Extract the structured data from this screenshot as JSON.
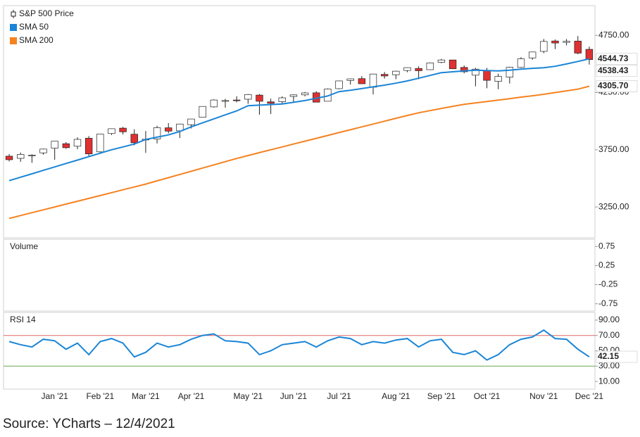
{
  "chart_data": [
    {
      "type": "candlestick",
      "up_color": "#ffffff",
      "down_color": "#e03131",
      "outline_color": "#222222",
      "ylim": [
        2980,
        5010
      ],
      "yticks": [
        {
          "value": 3250,
          "label": "3250.00"
        },
        {
          "value": 3750,
          "label": "3750.00"
        },
        {
          "value": 4250,
          "label": "4250.00"
        },
        {
          "value": 4750,
          "label": "4750.00"
        }
      ],
      "series": [
        {
          "name": "S&P 500 Price",
          "open": [
            3694,
            3675,
            3698,
            3723,
            3764,
            3803,
            3781,
            3851,
            3732,
            3892,
            3939,
            3886,
            3842,
            3844,
            3942,
            3916,
            3969,
            4034,
            4125,
            4180,
            4185,
            4192,
            4228,
            4169,
            4170,
            4216,
            4230,
            4248,
            4174,
            4284,
            4356,
            4372,
            4297,
            4409,
            4406,
            4443,
            4461,
            4450,
            4514,
            4535,
            4470,
            4402,
            4442,
            4348,
            4385,
            4470,
            4553,
            4610,
            4701,
            4689,
            4700,
            4628
          ],
          "high": [
            3712,
            3726,
            3711,
            3760,
            3826,
            3817,
            3859,
            3870,
            3887,
            3935,
            3950,
            3929,
            3914,
            3960,
            3983,
            3978,
            4020,
            4130,
            4191,
            4195,
            4218,
            4238,
            4237,
            4197,
            4217,
            4234,
            4255,
            4262,
            4286,
            4355,
            4372,
            4394,
            4415,
            4430,
            4441,
            4470,
            4479,
            4513,
            4545,
            4536,
            4487,
            4466,
            4466,
            4415,
            4475,
            4559,
            4608,
            4718,
            4714,
            4718,
            4744,
            4652
          ],
          "low": [
            3648,
            3645,
            3636,
            3707,
            3663,
            3759,
            3755,
            3694,
            3725,
            3879,
            3884,
            3789,
            3723,
            3805,
            3894,
            3853,
            3936,
            4032,
            4118,
            4118,
            4164,
            4152,
            4057,
            4062,
            4155,
            4168,
            4217,
            4165,
            4173,
            4279,
            4320,
            4325,
            4233,
            4372,
            4367,
            4428,
            4367,
            4448,
            4506,
            4457,
            4418,
            4305,
            4288,
            4279,
            4329,
            4465,
            4537,
            4595,
            4630,
            4662,
            4585,
            4495
          ],
          "close": [
            3663,
            3709,
            3703,
            3756,
            3825,
            3768,
            3841,
            3714,
            3887,
            3934,
            3907,
            3811,
            3842,
            3943,
            3913,
            3975,
            4019,
            4129,
            4185,
            4180,
            4181,
            4233,
            4174,
            4156,
            4204,
            4230,
            4247,
            4166,
            4281,
            4352,
            4370,
            4327,
            4412,
            4395,
            4437,
            4468,
            4441,
            4509,
            4535,
            4458,
            4432,
            4455,
            4357,
            4391,
            4471,
            4545,
            4605,
            4697,
            4683,
            4698,
            4595,
            4538.43
          ]
        },
        {
          "name": "SMA 50",
          "color": "#1a85d6",
          "values": [
            3480,
            3510,
            3540,
            3570,
            3600,
            3630,
            3660,
            3690,
            3720,
            3750,
            3775,
            3800,
            3840,
            3860,
            3880,
            3910,
            3950,
            3985,
            4020,
            4055,
            4090,
            4135,
            4140,
            4145,
            4150,
            4165,
            4180,
            4200,
            4220,
            4258,
            4270,
            4285,
            4300,
            4315,
            4332,
            4352,
            4375,
            4400,
            4424,
            4432,
            4440,
            4445,
            4442,
            4440,
            4445,
            4455,
            4462,
            4467,
            4480,
            4500,
            4522,
            4544.73
          ]
        },
        {
          "name": "SMA 200",
          "color": "#f5821f",
          "values": [
            3150,
            3175,
            3200,
            3225,
            3250,
            3275,
            3300,
            3325,
            3350,
            3375,
            3400,
            3425,
            3450,
            3478,
            3506,
            3534,
            3562,
            3590,
            3618,
            3646,
            3674,
            3700,
            3725,
            3750,
            3775,
            3800,
            3825,
            3850,
            3875,
            3900,
            3925,
            3950,
            3975,
            4000,
            4025,
            4050,
            4073,
            4092,
            4111,
            4130,
            4147,
            4160,
            4172,
            4184,
            4197,
            4210,
            4222,
            4235,
            4250,
            4265,
            4280,
            4305.7
          ],
          "value_labels": [
            null,
            null,
            null,
            null,
            null,
            null,
            null,
            null,
            null,
            null,
            null,
            null,
            null,
            null,
            null,
            null,
            null,
            null,
            null,
            null,
            null,
            null,
            null,
            null,
            null,
            null,
            null,
            null,
            null,
            null,
            null,
            null,
            null,
            null,
            null,
            null,
            null,
            null,
            null,
            null,
            null,
            null,
            null,
            null,
            null,
            null,
            null,
            null,
            null,
            null,
            null,
            "4305.70"
          ]
        }
      ]
    },
    {
      "type": "empty",
      "title": "Volume",
      "ylim": [
        -0.94,
        0.94
      ],
      "yticks": [
        0.75,
        0.25,
        -0.25,
        -0.75
      ]
    },
    {
      "type": "line",
      "title": "RSI 14",
      "color": "#1a85d6",
      "ylim": [
        0,
        100
      ],
      "yticks": [
        {
          "value": 90,
          "label": "90.00"
        },
        {
          "value": 70,
          "label": "70.00"
        },
        {
          "value": 50,
          "label": "50.00"
        },
        {
          "value": 30,
          "label": "30.00"
        },
        {
          "value": 10,
          "label": "10.00"
        }
      ],
      "reference_lines": [
        {
          "value": 70,
          "color": "#e06666"
        },
        {
          "value": 30,
          "color": "#6aa84f"
        }
      ],
      "categories": [
        null,
        null,
        null,
        null,
        "Jan '21",
        null,
        null,
        null,
        "Feb '21",
        null,
        null,
        null,
        "Mar '21",
        null,
        null,
        null,
        "Apr '21",
        null,
        null,
        null,
        null,
        "May '21",
        null,
        null,
        null,
        "Jun '21",
        null,
        null,
        null,
        "Jul '21",
        null,
        null,
        null,
        null,
        "Aug '21",
        null,
        null,
        null,
        "Sep '21",
        null,
        null,
        null,
        "Oct '21",
        null,
        null,
        null,
        null,
        "Nov '21",
        null,
        null,
        null,
        "Dec '21"
      ],
      "values": [
        62,
        58,
        55,
        65,
        63,
        52,
        60,
        45,
        62,
        66,
        60,
        42,
        48,
        60,
        55,
        58,
        65,
        70,
        72,
        63,
        62,
        60,
        45,
        50,
        58,
        60,
        62,
        55,
        63,
        68,
        66,
        58,
        62,
        60,
        64,
        66,
        55,
        63,
        65,
        48,
        45,
        50,
        38,
        45,
        58,
        65,
        68,
        77,
        66,
        65,
        52,
        42.15
      ]
    }
  ],
  "caption": "Source: YCharts – 12/4/2021"
}
